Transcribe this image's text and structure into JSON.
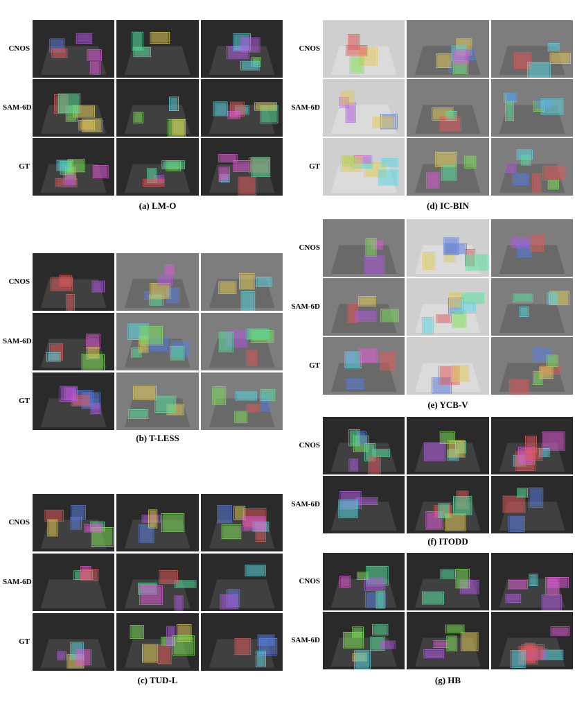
{
  "panels": [
    {
      "id": "lmo",
      "caption": "(a) LM-O",
      "rows": [
        "CNOS",
        "SAM-6D",
        "GT"
      ],
      "tone": "dark"
    },
    {
      "id": "icbin",
      "caption": "(d) IC-BIN",
      "rows": [
        "CNOS",
        "SAM-6D",
        "GT"
      ],
      "tone": "mid"
    },
    {
      "id": "tless",
      "caption": "(b) T-LESS",
      "rows": [
        "CNOS",
        "SAM-6D",
        "GT"
      ],
      "tone": "dark"
    },
    {
      "id": "ycbv",
      "caption": "(e) YCB-V",
      "rows": [
        "CNOS",
        "SAM-6D",
        "GT"
      ],
      "tone": "mid"
    },
    {
      "id": "itodd",
      "caption": "(f) ITODD",
      "rows": [
        "CNOS",
        "SAM-6D"
      ],
      "tone": "dark"
    },
    {
      "id": "tudl",
      "caption": "(c) TUD-L",
      "rows": [
        "CNOS",
        "SAM-6D",
        "GT"
      ],
      "tone": "dark"
    },
    {
      "id": "hb",
      "caption": "(g) HB",
      "rows": [
        "CNOS",
        "SAM-6D"
      ],
      "tone": "dark"
    }
  ],
  "mask_colors": [
    "#e05ad6",
    "#5ad6e0",
    "#7ee05a",
    "#e0c95a",
    "#5a7ee0",
    "#e05a5a",
    "#b05ae0",
    "#5ae09e"
  ]
}
